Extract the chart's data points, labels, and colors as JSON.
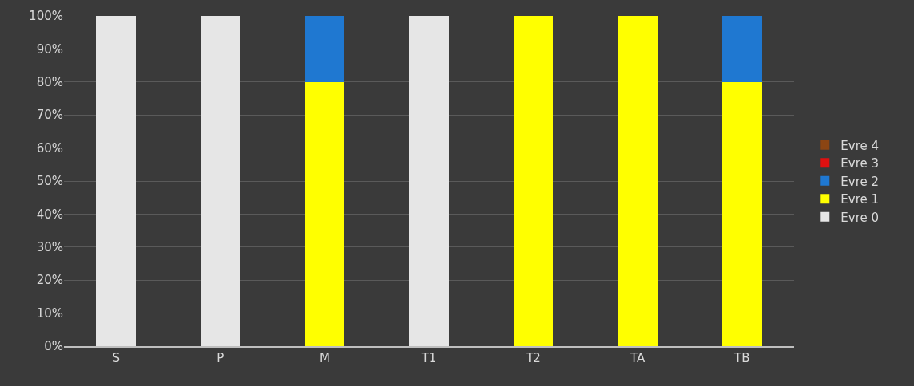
{
  "chart_data": {
    "type": "bar",
    "stacked": true,
    "categories": [
      "S",
      "P",
      "M",
      "T1",
      "T2",
      "TA",
      "TB"
    ],
    "series": [
      {
        "name": "Evre 0",
        "color": "#e6e6e6",
        "values": [
          100,
          100,
          0,
          100,
          0,
          0,
          0
        ]
      },
      {
        "name": "Evre 1",
        "color": "#ffff00",
        "values": [
          0,
          0,
          80,
          0,
          100,
          100,
          80
        ]
      },
      {
        "name": "Evre 2",
        "color": "#1f78d1",
        "values": [
          0,
          0,
          20,
          0,
          0,
          0,
          20
        ]
      },
      {
        "name": "Evre 3",
        "color": "#e01010",
        "values": [
          0,
          0,
          0,
          0,
          0,
          0,
          0
        ]
      },
      {
        "name": "Evre 4",
        "color": "#8b4513",
        "values": [
          0,
          0,
          0,
          0,
          0,
          0,
          0
        ]
      }
    ],
    "ylim": [
      0,
      100
    ],
    "yticks": [
      {
        "value": 0,
        "label": "0%"
      },
      {
        "value": 10,
        "label": "10%"
      },
      {
        "value": 20,
        "label": "20%"
      },
      {
        "value": 30,
        "label": "30%"
      },
      {
        "value": 40,
        "label": "40%"
      },
      {
        "value": 50,
        "label": "50%"
      },
      {
        "value": 60,
        "label": "60%"
      },
      {
        "value": 70,
        "label": "70%"
      },
      {
        "value": 80,
        "label": "80%"
      },
      {
        "value": 90,
        "label": "90%"
      },
      {
        "value": 100,
        "label": "100%"
      }
    ],
    "grid": "y",
    "legend": "right"
  }
}
